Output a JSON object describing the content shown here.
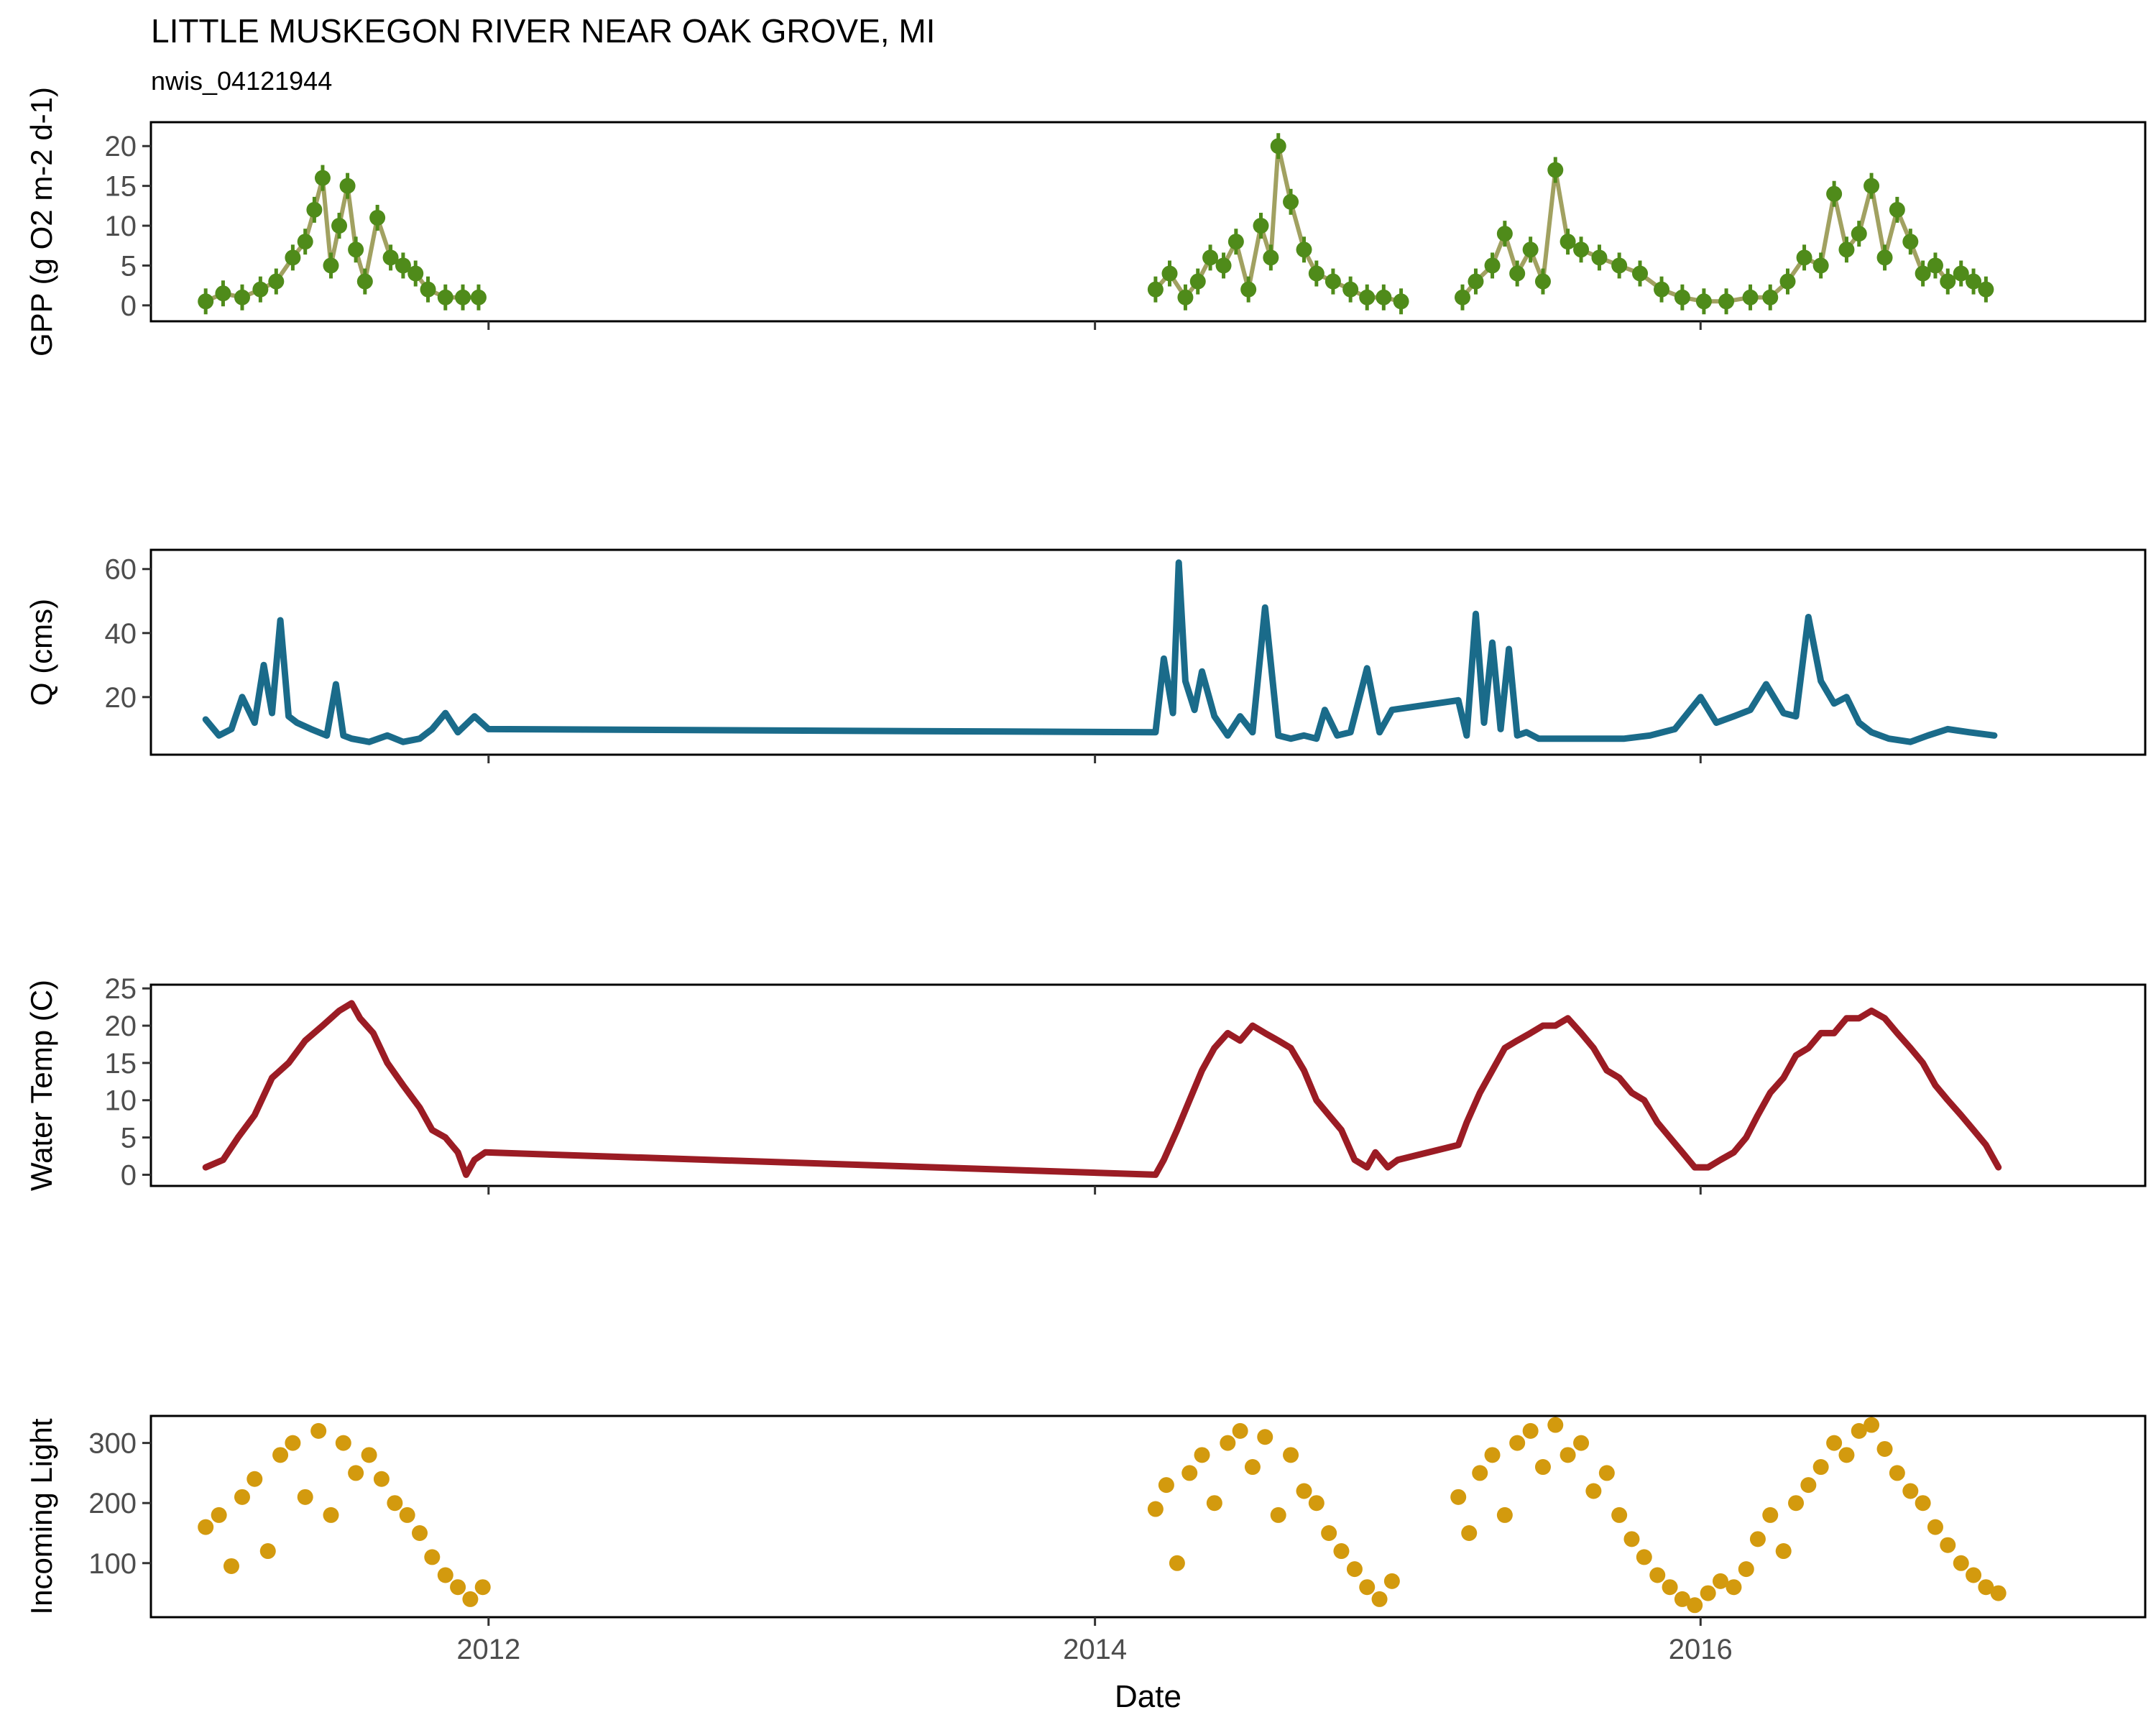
{
  "title": "LITTLE MUSKEGON RIVER NEAR OAK GROVE, MI",
  "subtitle": "nwis_04121944",
  "xlabel": "Date",
  "x_ticks": [
    "2012",
    "2014",
    "2016"
  ],
  "x_range": [
    "2010-11-20",
    "2017-06-20"
  ],
  "chart_data": [
    {
      "type": "scatter",
      "ylabel": "GPP (g O2 m-2 d-1)",
      "ylim": [
        -2,
        23
      ],
      "yticks": [
        0,
        5,
        10,
        15,
        20
      ],
      "color": "#4f8b1a",
      "style": "points-with-errorbars",
      "grid": false,
      "segments": [
        {
          "x": [
            "2011-01-25",
            "2011-02-15",
            "2011-03-10",
            "2011-04-01",
            "2011-04-20",
            "2011-05-10",
            "2011-05-25",
            "2011-06-05",
            "2011-06-15",
            "2011-06-25",
            "2011-07-05",
            "2011-07-15",
            "2011-07-25",
            "2011-08-05",
            "2011-08-20",
            "2011-09-05",
            "2011-09-20",
            "2011-10-05",
            "2011-10-20",
            "2011-11-10",
            "2011-12-01",
            "2011-12-20"
          ],
          "y": [
            0.5,
            1.5,
            1,
            2,
            3,
            6,
            8,
            12,
            16,
            5,
            10,
            15,
            7,
            3,
            11,
            6,
            5,
            4,
            2,
            1,
            1,
            1
          ]
        },
        {
          "x": [
            "2014-03-15",
            "2014-04-01",
            "2014-04-20",
            "2014-05-05",
            "2014-05-20",
            "2014-06-05",
            "2014-06-20",
            "2014-07-05",
            "2014-07-20",
            "2014-08-01",
            "2014-08-10",
            "2014-08-25",
            "2014-09-10",
            "2014-09-25",
            "2014-10-15",
            "2014-11-05",
            "2014-11-25",
            "2014-12-15",
            "2015-01-05"
          ],
          "y": [
            2,
            4,
            1,
            3,
            6,
            5,
            8,
            2,
            10,
            6,
            20,
            13,
            7,
            4,
            3,
            2,
            1,
            1,
            0.5
          ]
        },
        {
          "x": [
            "2015-03-20",
            "2015-04-05",
            "2015-04-25",
            "2015-05-10",
            "2015-05-25",
            "2015-06-10",
            "2015-06-25",
            "2015-07-10",
            "2015-07-25",
            "2015-08-10",
            "2015-09-01",
            "2015-09-25",
            "2015-10-20",
            "2015-11-15",
            "2015-12-10",
            "2016-01-05",
            "2016-02-01",
            "2016-03-01",
            "2016-03-25",
            "2016-04-15",
            "2016-05-05",
            "2016-05-25",
            "2016-06-10",
            "2016-06-25",
            "2016-07-10",
            "2016-07-25",
            "2016-08-10",
            "2016-08-25",
            "2016-09-10",
            "2016-09-25",
            "2016-10-10",
            "2016-10-25",
            "2016-11-10",
            "2016-11-25",
            "2016-12-10"
          ],
          "y": [
            1,
            3,
            5,
            9,
            4,
            7,
            3,
            17,
            8,
            7,
            6,
            5,
            4,
            2,
            1,
            0.5,
            0.5,
            1,
            1,
            3,
            6,
            5,
            14,
            7,
            9,
            15,
            6,
            12,
            8,
            4,
            5,
            3,
            4,
            3,
            2
          ]
        }
      ]
    },
    {
      "type": "line",
      "ylabel": "Q (cms)",
      "ylim": [
        2,
        66
      ],
      "yticks": [
        20,
        40,
        60
      ],
      "color": "#1a6b8a",
      "grid": false,
      "segments": [
        {
          "x": [
            "2011-01-25",
            "2011-02-10",
            "2011-02-25",
            "2011-03-10",
            "2011-03-25",
            "2011-04-05",
            "2011-04-15",
            "2011-04-25",
            "2011-05-05",
            "2011-05-15",
            "2011-06-01",
            "2011-06-20",
            "2011-07-01",
            "2011-07-10",
            "2011-07-20",
            "2011-08-10",
            "2011-09-01",
            "2011-09-20",
            "2011-10-10",
            "2011-10-25",
            "2011-11-10",
            "2011-11-25",
            "2011-12-15",
            "2012-01-01",
            "2014-03-15",
            "2014-03-25",
            "2014-04-05",
            "2014-04-12",
            "2014-04-20",
            "2014-05-01",
            "2014-05-10",
            "2014-05-25",
            "2014-06-10",
            "2014-06-25",
            "2014-07-10",
            "2014-07-25",
            "2014-08-10",
            "2014-08-25",
            "2014-09-10",
            "2014-09-25",
            "2014-10-05",
            "2014-10-20",
            "2014-11-05",
            "2014-11-25",
            "2014-12-10",
            "2014-12-25",
            "2015-03-15",
            "2015-03-25",
            "2015-04-05",
            "2015-04-15",
            "2015-04-25",
            "2015-05-05",
            "2015-05-15",
            "2015-05-25",
            "2015-06-05",
            "2015-06-20",
            "2015-07-10",
            "2015-08-01",
            "2015-09-01",
            "2015-10-01",
            "2015-11-01",
            "2015-12-01",
            "2016-01-01",
            "2016-01-20",
            "2016-02-10",
            "2016-03-01",
            "2016-03-20",
            "2016-04-10",
            "2016-04-25",
            "2016-05-10",
            "2016-05-25",
            "2016-06-10",
            "2016-06-25",
            "2016-07-10",
            "2016-07-25",
            "2016-08-15",
            "2016-09-10",
            "2016-10-01",
            "2016-10-25",
            "2016-11-20",
            "2016-12-20"
          ],
          "y": [
            13,
            8,
            10,
            20,
            12,
            30,
            15,
            44,
            14,
            12,
            10,
            8,
            24,
            8,
            7,
            6,
            8,
            6,
            7,
            10,
            15,
            9,
            14,
            10,
            9,
            32,
            15,
            62,
            25,
            16,
            28,
            14,
            8,
            14,
            9,
            48,
            8,
            7,
            8,
            7,
            16,
            8,
            9,
            29,
            9,
            16,
            19,
            8,
            46,
            12,
            37,
            10,
            35,
            8,
            9,
            7,
            7,
            7,
            7,
            7,
            8,
            10,
            20,
            12,
            14,
            16,
            24,
            15,
            14,
            45,
            25,
            18,
            20,
            12,
            9,
            7,
            6,
            8,
            10,
            9,
            8
          ]
        }
      ]
    },
    {
      "type": "line",
      "ylabel": "Water Temp (C)",
      "ylim": [
        -1.5,
        25.5
      ],
      "yticks": [
        0,
        5,
        10,
        15,
        20,
        25
      ],
      "color": "#9b1c24",
      "grid": false,
      "segments": [
        {
          "x": [
            "2011-01-25",
            "2011-02-15",
            "2011-03-05",
            "2011-03-25",
            "2011-04-15",
            "2011-05-05",
            "2011-05-25",
            "2011-06-15",
            "2011-07-05",
            "2011-07-20",
            "2011-07-30",
            "2011-08-15",
            "2011-09-01",
            "2011-09-20",
            "2011-10-10",
            "2011-10-25",
            "2011-11-10",
            "2011-11-25",
            "2011-12-05",
            "2011-12-15",
            "2011-12-28",
            "2014-03-15",
            "2014-03-25",
            "2014-04-10",
            "2014-04-25",
            "2014-05-10",
            "2014-05-25",
            "2014-06-10",
            "2014-06-25",
            "2014-07-10",
            "2014-07-25",
            "2014-08-10",
            "2014-08-25",
            "2014-09-10",
            "2014-09-25",
            "2014-10-10",
            "2014-10-25",
            "2014-11-10",
            "2014-11-25",
            "2014-12-05",
            "2014-12-20",
            "2015-01-01",
            "2015-03-15",
            "2015-03-25",
            "2015-04-10",
            "2015-04-25",
            "2015-05-10",
            "2015-05-25",
            "2015-06-10",
            "2015-06-25",
            "2015-07-10",
            "2015-07-25",
            "2015-08-10",
            "2015-08-25",
            "2015-09-10",
            "2015-09-25",
            "2015-10-10",
            "2015-10-25",
            "2015-11-10",
            "2015-11-25",
            "2015-12-10",
            "2015-12-25",
            "2016-01-10",
            "2016-01-25",
            "2016-02-10",
            "2016-02-25",
            "2016-03-10",
            "2016-03-25",
            "2016-04-10",
            "2016-04-25",
            "2016-05-10",
            "2016-05-25",
            "2016-06-10",
            "2016-06-25",
            "2016-07-10",
            "2016-07-25",
            "2016-08-10",
            "2016-08-25",
            "2016-09-10",
            "2016-09-25",
            "2016-10-10",
            "2016-10-25",
            "2016-11-10",
            "2016-11-25",
            "2016-12-10",
            "2016-12-25"
          ],
          "y": [
            1,
            2,
            5,
            8,
            13,
            15,
            18,
            20,
            22,
            23,
            21,
            19,
            15,
            12,
            9,
            6,
            5,
            3,
            0,
            2,
            3,
            0,
            2,
            6,
            10,
            14,
            17,
            19,
            18,
            20,
            19,
            18,
            17,
            14,
            10,
            8,
            6,
            2,
            1,
            3,
            1,
            2,
            4,
            7,
            11,
            14,
            17,
            18,
            19,
            20,
            20,
            21,
            19,
            17,
            14,
            13,
            11,
            10,
            7,
            5,
            3,
            1,
            1,
            2,
            3,
            5,
            8,
            11,
            13,
            16,
            17,
            19,
            19,
            21,
            21,
            22,
            21,
            19,
            17,
            15,
            12,
            10,
            8,
            6,
            4,
            1
          ]
        }
      ]
    },
    {
      "type": "scatter",
      "ylabel": "Incoming Light",
      "ylim": [
        10,
        345
      ],
      "yticks": [
        100,
        200,
        300
      ],
      "color": "#d39a0e",
      "grid": false,
      "segments": [
        {
          "x": [
            "2011-01-25",
            "2011-02-10",
            "2011-02-25",
            "2011-03-10",
            "2011-03-25",
            "2011-04-10",
            "2011-04-25",
            "2011-05-10",
            "2011-05-25",
            "2011-06-10",
            "2011-06-25",
            "2011-07-10",
            "2011-07-25",
            "2011-08-10",
            "2011-08-25",
            "2011-09-10",
            "2011-09-25",
            "2011-10-10",
            "2011-10-25",
            "2011-11-10",
            "2011-11-25",
            "2011-12-10",
            "2011-12-25"
          ],
          "y": [
            160,
            180,
            95,
            210,
            240,
            120,
            280,
            300,
            210,
            320,
            180,
            300,
            250,
            280,
            240,
            200,
            180,
            150,
            110,
            80,
            60,
            40,
            60
          ]
        },
        {
          "x": [
            "2014-03-15",
            "2014-03-28",
            "2014-04-10",
            "2014-04-25",
            "2014-05-10",
            "2014-05-25",
            "2014-06-10",
            "2014-06-25",
            "2014-07-10",
            "2014-07-25",
            "2014-08-10",
            "2014-08-25",
            "2014-09-10",
            "2014-09-25",
            "2014-10-10",
            "2014-10-25",
            "2014-11-10",
            "2014-11-25",
            "2014-12-10",
            "2014-12-25"
          ],
          "y": [
            190,
            230,
            100,
            250,
            280,
            200,
            300,
            320,
            260,
            310,
            180,
            280,
            220,
            200,
            150,
            120,
            90,
            60,
            40,
            70
          ]
        },
        {
          "x": [
            "2015-03-15",
            "2015-03-28",
            "2015-04-10",
            "2015-04-25",
            "2015-05-10",
            "2015-05-25",
            "2015-06-10",
            "2015-06-25",
            "2015-07-10",
            "2015-07-25",
            "2015-08-10",
            "2015-08-25",
            "2015-09-10",
            "2015-09-25",
            "2015-10-10",
            "2015-10-25",
            "2015-11-10",
            "2015-11-25",
            "2015-12-10",
            "2015-12-25",
            "2016-01-10",
            "2016-01-25",
            "2016-02-10",
            "2016-02-25",
            "2016-03-10",
            "2016-03-25",
            "2016-04-10",
            "2016-04-25",
            "2016-05-10",
            "2016-05-25",
            "2016-06-10",
            "2016-06-25",
            "2016-07-10",
            "2016-07-25",
            "2016-08-10",
            "2016-08-25",
            "2016-09-10",
            "2016-09-25",
            "2016-10-10",
            "2016-10-25",
            "2016-11-10",
            "2016-11-25",
            "2016-12-10",
            "2016-12-25"
          ],
          "y": [
            210,
            150,
            250,
            280,
            180,
            300,
            320,
            260,
            330,
            280,
            300,
            220,
            250,
            180,
            140,
            110,
            80,
            60,
            40,
            30,
            50,
            70,
            60,
            90,
            140,
            180,
            120,
            200,
            230,
            260,
            300,
            280,
            320,
            330,
            290,
            250,
            220,
            200,
            160,
            130,
            100,
            80,
            60,
            50
          ]
        }
      ]
    }
  ]
}
